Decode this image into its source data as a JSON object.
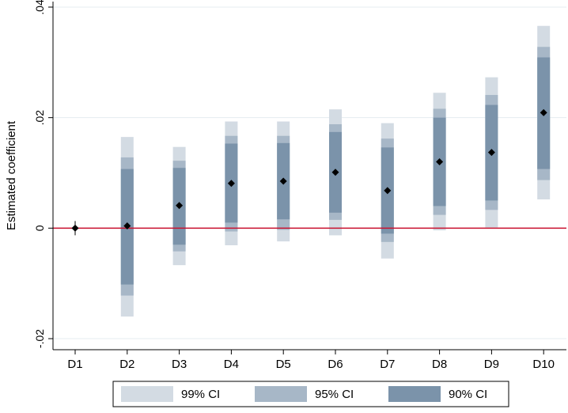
{
  "chart_data": {
    "type": "coefficient-plot",
    "xlabel": "",
    "ylabel": "Estimated coefficient",
    "ylim": [
      -0.022,
      0.041
    ],
    "yticks": [
      {
        "value": -0.02,
        "label": "-.02"
      },
      {
        "value": 0,
        "label": "0"
      },
      {
        "value": 0.02,
        "label": ".02"
      },
      {
        "value": 0.04,
        "label": ".04"
      }
    ],
    "grid": true,
    "reference_line": {
      "value": 0,
      "color": "#c8102e"
    },
    "legend_position": "bottom",
    "categories": [
      "D1",
      "D2",
      "D3",
      "D4",
      "D5",
      "D6",
      "D7",
      "D8",
      "D9",
      "D10"
    ],
    "point_estimates": [
      0.0,
      0.0004,
      0.0041,
      0.0081,
      0.0085,
      0.0101,
      0.0068,
      0.012,
      0.0137,
      0.0209
    ],
    "series": [
      {
        "name": "99% CI",
        "color": "#d3dbe3",
        "lower": [
          0.0,
          -0.016,
          -0.0067,
          -0.0031,
          -0.0024,
          -0.0013,
          -0.0055,
          -0.0004,
          0.0001,
          0.0052
        ],
        "upper": [
          0.0,
          0.0165,
          0.0147,
          0.0193,
          0.0193,
          0.0215,
          0.019,
          0.0245,
          0.0273,
          0.0366
        ]
      },
      {
        "name": "95% CI",
        "color": "#a7b7c7",
        "lower": [
          0.0,
          -0.0122,
          -0.0042,
          -0.0006,
          -0.0003,
          0.0015,
          -0.0025,
          0.0024,
          0.0033,
          0.0087
        ],
        "upper": [
          0.0,
          0.0128,
          0.0122,
          0.0167,
          0.0167,
          0.0188,
          0.0162,
          0.0216,
          0.0241,
          0.0328
        ]
      },
      {
        "name": "90% CI",
        "color": "#7b93aa",
        "lower": [
          0.0,
          -0.0102,
          -0.003,
          0.001,
          0.0016,
          0.0028,
          -0.001,
          0.004,
          0.005,
          0.0107
        ],
        "upper": [
          0.0,
          0.0107,
          0.0109,
          0.0153,
          0.0154,
          0.0174,
          0.0146,
          0.02,
          0.0223,
          0.0309
        ]
      }
    ],
    "colors": {
      "gridline": "#e5ecf0",
      "axis": "#000000",
      "marker": "#000000"
    }
  }
}
